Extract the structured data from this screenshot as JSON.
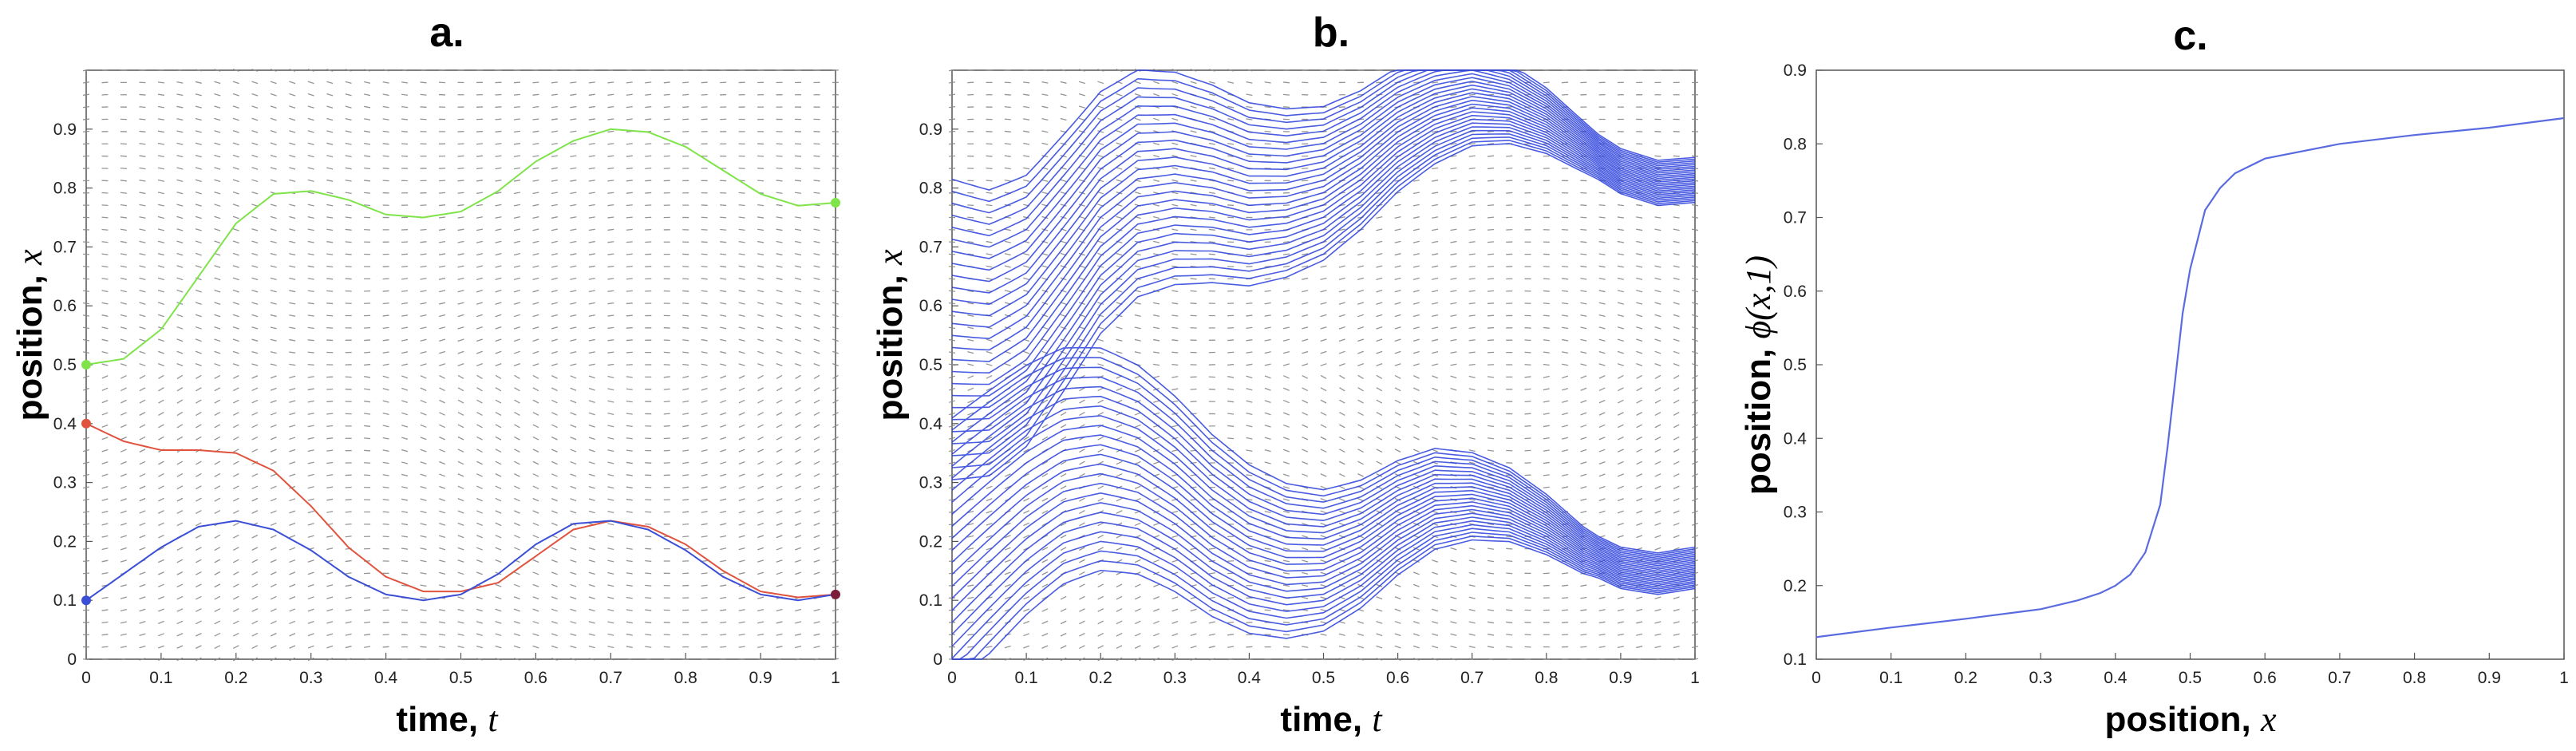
{
  "figure": {
    "panels": [
      "a.",
      "b.",
      "c."
    ]
  },
  "chart_data": [
    {
      "type": "line",
      "panel_label": "a.",
      "xlabel_prefix": "time, ",
      "xlabel_var": "t",
      "ylabel_prefix": "position, ",
      "ylabel_var": "x",
      "xlim": [
        0,
        1
      ],
      "ylim": [
        0,
        1
      ],
      "xticks": [
        "0",
        "0.1",
        "0.2",
        "0.3",
        "0.4",
        "0.5",
        "0.6",
        "0.7",
        "0.8",
        "0.9",
        "1"
      ],
      "yticks": [
        "0",
        "0.1",
        "0.2",
        "0.3",
        "0.4",
        "0.5",
        "0.6",
        "0.7",
        "0.8",
        "0.9"
      ],
      "background": "vector-field",
      "series": [
        {
          "color": "#7fe34a",
          "x": [
            0,
            0.05,
            0.1,
            0.15,
            0.2,
            0.25,
            0.3,
            0.35,
            0.4,
            0.45,
            0.5,
            0.55,
            0.6,
            0.65,
            0.7,
            0.75,
            0.8,
            0.85,
            0.9,
            0.95,
            1.0
          ],
          "y": [
            0.5,
            0.51,
            0.56,
            0.65,
            0.74,
            0.79,
            0.795,
            0.78,
            0.755,
            0.75,
            0.76,
            0.795,
            0.845,
            0.88,
            0.9,
            0.895,
            0.87,
            0.83,
            0.79,
            0.77,
            0.775
          ]
        },
        {
          "color": "#e0533e",
          "x": [
            0,
            0.05,
            0.1,
            0.15,
            0.2,
            0.25,
            0.3,
            0.35,
            0.4,
            0.45,
            0.5,
            0.55,
            0.6,
            0.65,
            0.7,
            0.75,
            0.8,
            0.85,
            0.9,
            0.95,
            1.0
          ],
          "y": [
            0.4,
            0.37,
            0.355,
            0.355,
            0.35,
            0.32,
            0.26,
            0.19,
            0.14,
            0.115,
            0.115,
            0.13,
            0.175,
            0.22,
            0.235,
            0.225,
            0.195,
            0.15,
            0.115,
            0.105,
            0.11
          ]
        },
        {
          "color": "#3b4fd6",
          "x": [
            0,
            0.05,
            0.1,
            0.15,
            0.2,
            0.25,
            0.3,
            0.35,
            0.4,
            0.45,
            0.5,
            0.55,
            0.6,
            0.65,
            0.7,
            0.75,
            0.8,
            0.85,
            0.9,
            0.95,
            1.0
          ],
          "y": [
            0.1,
            0.145,
            0.19,
            0.225,
            0.235,
            0.22,
            0.185,
            0.14,
            0.11,
            0.1,
            0.11,
            0.145,
            0.195,
            0.23,
            0.235,
            0.22,
            0.185,
            0.14,
            0.11,
            0.1,
            0.11
          ]
        }
      ],
      "markers": [
        {
          "x": 0,
          "y": 0.5,
          "color": "#7fe34a"
        },
        {
          "x": 0,
          "y": 0.4,
          "color": "#e0533e"
        },
        {
          "x": 0,
          "y": 0.1,
          "color": "#3b4fd6"
        },
        {
          "x": 1.0,
          "y": 0.775,
          "color": "#7fe34a"
        },
        {
          "x": 1.0,
          "y": 0.11,
          "color": "#7a1e3a"
        }
      ]
    },
    {
      "type": "line",
      "panel_label": "b.",
      "xlabel_prefix": "time, ",
      "xlabel_var": "t",
      "ylabel_prefix": "position, ",
      "ylabel_var": "x",
      "xlim": [
        0,
        1
      ],
      "ylim": [
        0,
        1
      ],
      "xticks": [
        "0",
        "0.1",
        "0.2",
        "0.3",
        "0.4",
        "0.5",
        "0.6",
        "0.7",
        "0.8",
        "0.9",
        "1"
      ],
      "yticks": [
        "0",
        "0.1",
        "0.2",
        "0.3",
        "0.4",
        "0.5",
        "0.6",
        "0.7",
        "0.8",
        "0.9"
      ],
      "background": "vector-field",
      "series_color": "#2a3fdc",
      "flow_lines": {
        "count": 50,
        "x0_from": 0.0,
        "x0_to": 1.0,
        "description_values": "trajectories of the flow starting at evenly spaced initial positions"
      }
    },
    {
      "type": "line",
      "panel_label": "c.",
      "xlabel_prefix": "position, ",
      "xlabel_var": "x",
      "ylabel_prefix": "position, ",
      "ylabel_var": "ϕ(x,1)",
      "xlim": [
        0,
        1
      ],
      "ylim": [
        0.1,
        0.9
      ],
      "xticks": [
        "0",
        "0.1",
        "0.2",
        "0.3",
        "0.4",
        "0.5",
        "0.6",
        "0.7",
        "0.8",
        "0.9",
        "1"
      ],
      "yticks": [
        "0.1",
        "0.2",
        "0.3",
        "0.4",
        "0.5",
        "0.6",
        "0.7",
        "0.8",
        "0.9"
      ],
      "series": [
        {
          "color": "#5a6be0",
          "x": [
            0,
            0.1,
            0.2,
            0.3,
            0.35,
            0.38,
            0.4,
            0.42,
            0.44,
            0.46,
            0.47,
            0.48,
            0.49,
            0.5,
            0.51,
            0.52,
            0.54,
            0.56,
            0.6,
            0.7,
            0.8,
            0.9,
            1.0
          ],
          "y": [
            0.13,
            0.143,
            0.155,
            0.168,
            0.18,
            0.19,
            0.2,
            0.215,
            0.245,
            0.31,
            0.39,
            0.48,
            0.57,
            0.63,
            0.67,
            0.71,
            0.74,
            0.76,
            0.78,
            0.8,
            0.812,
            0.822,
            0.835
          ]
        }
      ]
    }
  ]
}
